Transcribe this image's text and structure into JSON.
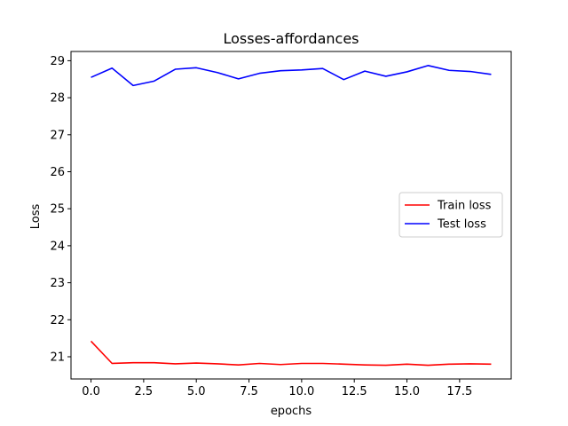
{
  "chart_data": {
    "type": "line",
    "title": "Losses-affordances",
    "xlabel": "epochs",
    "ylabel": "Loss",
    "xlim": [
      -0.95,
      19.95
    ],
    "ylim": [
      20.4,
      29.25
    ],
    "x_ticks": [
      0,
      2.5,
      5,
      7.5,
      10,
      12.5,
      15,
      17.5
    ],
    "x_tick_labels": [
      "0.0",
      "2.5",
      "5.0",
      "7.5",
      "10.0",
      "12.5",
      "15.0",
      "17.5"
    ],
    "y_ticks": [
      21,
      22,
      23,
      24,
      25,
      26,
      27,
      28,
      29
    ],
    "y_tick_labels": [
      "21",
      "22",
      "23",
      "24",
      "25",
      "26",
      "27",
      "28",
      "29"
    ],
    "grid": false,
    "legend_position": "center-right",
    "x": [
      0,
      1,
      2,
      3,
      4,
      5,
      6,
      7,
      8,
      9,
      10,
      11,
      12,
      13,
      14,
      15,
      16,
      17,
      18,
      19
    ],
    "series": [
      {
        "name": "Train loss",
        "color": "#ff0000",
        "values": [
          21.42,
          20.82,
          20.84,
          20.84,
          20.81,
          20.83,
          20.81,
          20.78,
          20.82,
          20.79,
          20.82,
          20.82,
          20.8,
          20.78,
          20.77,
          20.8,
          20.77,
          20.8,
          20.81,
          20.8
        ]
      },
      {
        "name": "Test loss",
        "color": "#0000ff",
        "values": [
          28.55,
          28.8,
          28.33,
          28.45,
          28.77,
          28.81,
          28.68,
          28.51,
          28.66,
          28.73,
          28.75,
          28.79,
          28.49,
          28.72,
          28.58,
          28.7,
          28.87,
          28.74,
          28.71,
          28.63
        ]
      }
    ]
  }
}
